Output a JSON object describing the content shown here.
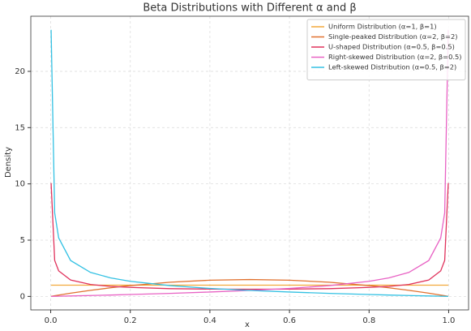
{
  "chart_data": {
    "type": "line",
    "title": "Beta Distributions with Different α and β",
    "x_label": "x",
    "y_label": "Density",
    "x": [
      0.001,
      0.01,
      0.02,
      0.05,
      0.1,
      0.15,
      0.2,
      0.3,
      0.4,
      0.5,
      0.6,
      0.7,
      0.8,
      0.85,
      0.9,
      0.95,
      0.98,
      0.99,
      0.999
    ],
    "series": [
      {
        "name": "Uniform Distribution (α=1, β=1)",
        "color": "#f2a93b",
        "values": [
          1,
          1,
          1,
          1,
          1,
          1,
          1,
          1,
          1,
          1,
          1,
          1,
          1,
          1,
          1,
          1,
          1,
          1,
          1
        ]
      },
      {
        "name": "Single-peaked Distribution (α=2, β=2)",
        "color": "#e0712f",
        "values": [
          0.006,
          0.059,
          0.118,
          0.285,
          0.54,
          0.765,
          0.96,
          1.26,
          1.44,
          1.5,
          1.44,
          1.26,
          0.96,
          0.765,
          0.54,
          0.285,
          0.118,
          0.059,
          0.006
        ]
      },
      {
        "name": "U-shaped Distribution (α=0.5, β=0.5)",
        "color": "#e0325c",
        "values": [
          10.07,
          3.2,
          2.27,
          1.46,
          1.06,
          0.89,
          0.8,
          0.69,
          0.65,
          0.64,
          0.65,
          0.69,
          0.8,
          0.89,
          1.06,
          1.46,
          2.27,
          3.2,
          10.07
        ]
      },
      {
        "name": "Right-skewed Distribution (α=2, β=0.5)",
        "color": "#e862c4",
        "values": [
          0.00075,
          0.0075,
          0.015,
          0.038,
          0.079,
          0.12,
          0.17,
          0.27,
          0.39,
          0.53,
          0.71,
          0.96,
          1.34,
          1.65,
          2.13,
          3.19,
          5.2,
          7.43,
          23.69
        ]
      },
      {
        "name": "Left-skewed Distribution (α=0.5, β=2)",
        "color": "#33c1e3",
        "values": [
          23.69,
          7.43,
          5.2,
          3.19,
          2.13,
          1.65,
          1.34,
          0.96,
          0.71,
          0.53,
          0.39,
          0.27,
          0.17,
          0.12,
          0.079,
          0.038,
          0.015,
          0.0075,
          0.00075
        ]
      }
    ],
    "xlim": [
      -0.05,
      1.05
    ],
    "xticks": [
      {
        "value": 0,
        "label": "0.0"
      },
      0.2,
      0.4,
      0.6,
      0.8,
      {
        "value": 1,
        "label": "1.0"
      }
    ],
    "ylim": [
      -1.2,
      24.9
    ],
    "yticks": [
      0,
      5,
      10,
      15,
      20
    ],
    "grid": true,
    "legend": "upper right"
  }
}
